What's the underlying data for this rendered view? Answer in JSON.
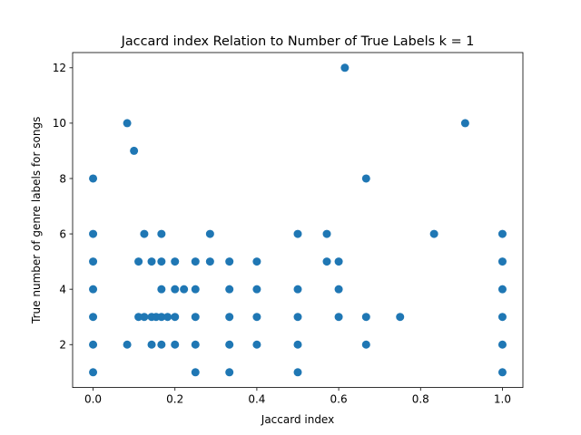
{
  "chart_data": {
    "type": "scatter",
    "title": "Jaccard index Relation to Number of True Labels k = 1",
    "xlabel": "Jaccard index",
    "ylabel": "True number of genre labels for songs",
    "xlim": [
      -0.05,
      1.05
    ],
    "ylim": [
      0.45,
      12.55
    ],
    "xticks": [
      0.0,
      0.2,
      0.4,
      0.6,
      0.8,
      1.0
    ],
    "xtick_labels": [
      "0.0",
      "0.2",
      "0.4",
      "0.6",
      "0.8",
      "1.0"
    ],
    "yticks": [
      2,
      4,
      6,
      8,
      10,
      12
    ],
    "ytick_labels": [
      "2",
      "4",
      "6",
      "8",
      "10",
      "12"
    ],
    "grid": false,
    "marker_color": "#1f77b4",
    "points": [
      {
        "x": 0.0,
        "y": 8
      },
      {
        "x": 0.0,
        "y": 6
      },
      {
        "x": 0.0,
        "y": 5
      },
      {
        "x": 0.0,
        "y": 4
      },
      {
        "x": 0.0,
        "y": 3
      },
      {
        "x": 0.0,
        "y": 2
      },
      {
        "x": 0.0,
        "y": 1
      },
      {
        "x": 0.0833,
        "y": 10
      },
      {
        "x": 0.0833,
        "y": 2
      },
      {
        "x": 0.1,
        "y": 9
      },
      {
        "x": 0.111,
        "y": 5
      },
      {
        "x": 0.111,
        "y": 3
      },
      {
        "x": 0.125,
        "y": 6
      },
      {
        "x": 0.125,
        "y": 3
      },
      {
        "x": 0.143,
        "y": 5
      },
      {
        "x": 0.143,
        "y": 3
      },
      {
        "x": 0.143,
        "y": 2
      },
      {
        "x": 0.154,
        "y": 3
      },
      {
        "x": 0.167,
        "y": 6
      },
      {
        "x": 0.167,
        "y": 5
      },
      {
        "x": 0.167,
        "y": 4
      },
      {
        "x": 0.167,
        "y": 3
      },
      {
        "x": 0.167,
        "y": 2
      },
      {
        "x": 0.182,
        "y": 3
      },
      {
        "x": 0.2,
        "y": 5
      },
      {
        "x": 0.2,
        "y": 4
      },
      {
        "x": 0.2,
        "y": 3
      },
      {
        "x": 0.2,
        "y": 2
      },
      {
        "x": 0.222,
        "y": 4
      },
      {
        "x": 0.25,
        "y": 5
      },
      {
        "x": 0.25,
        "y": 4
      },
      {
        "x": 0.25,
        "y": 3
      },
      {
        "x": 0.25,
        "y": 2
      },
      {
        "x": 0.25,
        "y": 1
      },
      {
        "x": 0.2857,
        "y": 6
      },
      {
        "x": 0.2857,
        "y": 5
      },
      {
        "x": 0.333,
        "y": 5
      },
      {
        "x": 0.333,
        "y": 4
      },
      {
        "x": 0.333,
        "y": 3
      },
      {
        "x": 0.333,
        "y": 2
      },
      {
        "x": 0.333,
        "y": 1
      },
      {
        "x": 0.4,
        "y": 5
      },
      {
        "x": 0.4,
        "y": 4
      },
      {
        "x": 0.4,
        "y": 3
      },
      {
        "x": 0.4,
        "y": 2
      },
      {
        "x": 0.5,
        "y": 6
      },
      {
        "x": 0.5,
        "y": 4
      },
      {
        "x": 0.5,
        "y": 3
      },
      {
        "x": 0.5,
        "y": 2
      },
      {
        "x": 0.5,
        "y": 1
      },
      {
        "x": 0.571,
        "y": 6
      },
      {
        "x": 0.571,
        "y": 5
      },
      {
        "x": 0.6,
        "y": 5
      },
      {
        "x": 0.6,
        "y": 4
      },
      {
        "x": 0.6,
        "y": 3
      },
      {
        "x": 0.615,
        "y": 12
      },
      {
        "x": 0.667,
        "y": 8
      },
      {
        "x": 0.667,
        "y": 3
      },
      {
        "x": 0.667,
        "y": 2
      },
      {
        "x": 0.75,
        "y": 3
      },
      {
        "x": 0.833,
        "y": 6
      },
      {
        "x": 0.909,
        "y": 10
      },
      {
        "x": 1.0,
        "y": 6
      },
      {
        "x": 1.0,
        "y": 5
      },
      {
        "x": 1.0,
        "y": 4
      },
      {
        "x": 1.0,
        "y": 3
      },
      {
        "x": 1.0,
        "y": 2
      },
      {
        "x": 1.0,
        "y": 1
      }
    ]
  }
}
